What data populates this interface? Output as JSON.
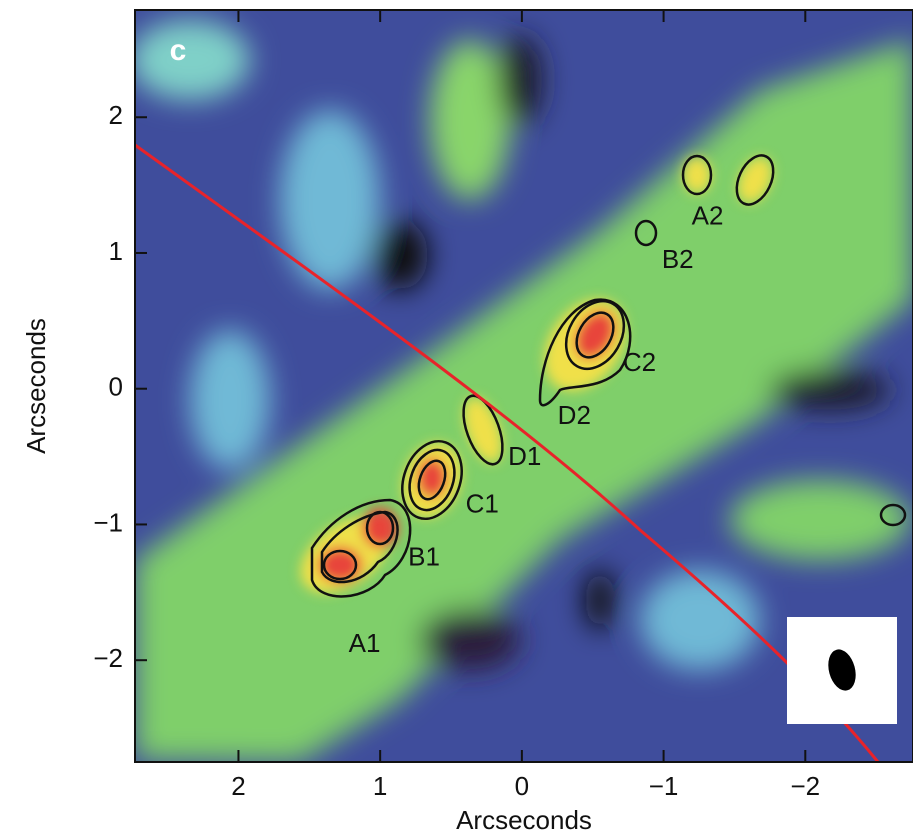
{
  "chart_data": {
    "type": "map",
    "panel_label": "c",
    "x_label": "Arcseconds",
    "y_label": "Arcseconds",
    "xlim": [
      2.73,
      -2.76
    ],
    "ylim": [
      -2.75,
      2.79
    ],
    "xticks": [
      2,
      1,
      0,
      {
        "value": -1,
        "label": "−1"
      },
      {
        "value": -2,
        "label": "−2"
      }
    ],
    "yticks": [
      {
        "value": -2,
        "label": "−2"
      },
      {
        "value": -1,
        "label": "−1"
      },
      0,
      1,
      2
    ],
    "annotations": [
      {
        "text": "A2",
        "x": -1.31,
        "y": 1.26
      },
      {
        "text": "B2",
        "x": -1.1,
        "y": 0.94
      },
      {
        "text": "C2",
        "x": -0.83,
        "y": 0.18
      },
      {
        "text": "D2",
        "x": -0.37,
        "y": -0.21
      },
      {
        "text": "D1",
        "x": -0.02,
        "y": -0.51
      },
      {
        "text": "C1",
        "x": 0.28,
        "y": -0.86
      },
      {
        "text": "B1",
        "x": 0.69,
        "y": -1.25
      },
      {
        "text": "A1",
        "x": 1.11,
        "y": -1.89
      }
    ]
  }
}
